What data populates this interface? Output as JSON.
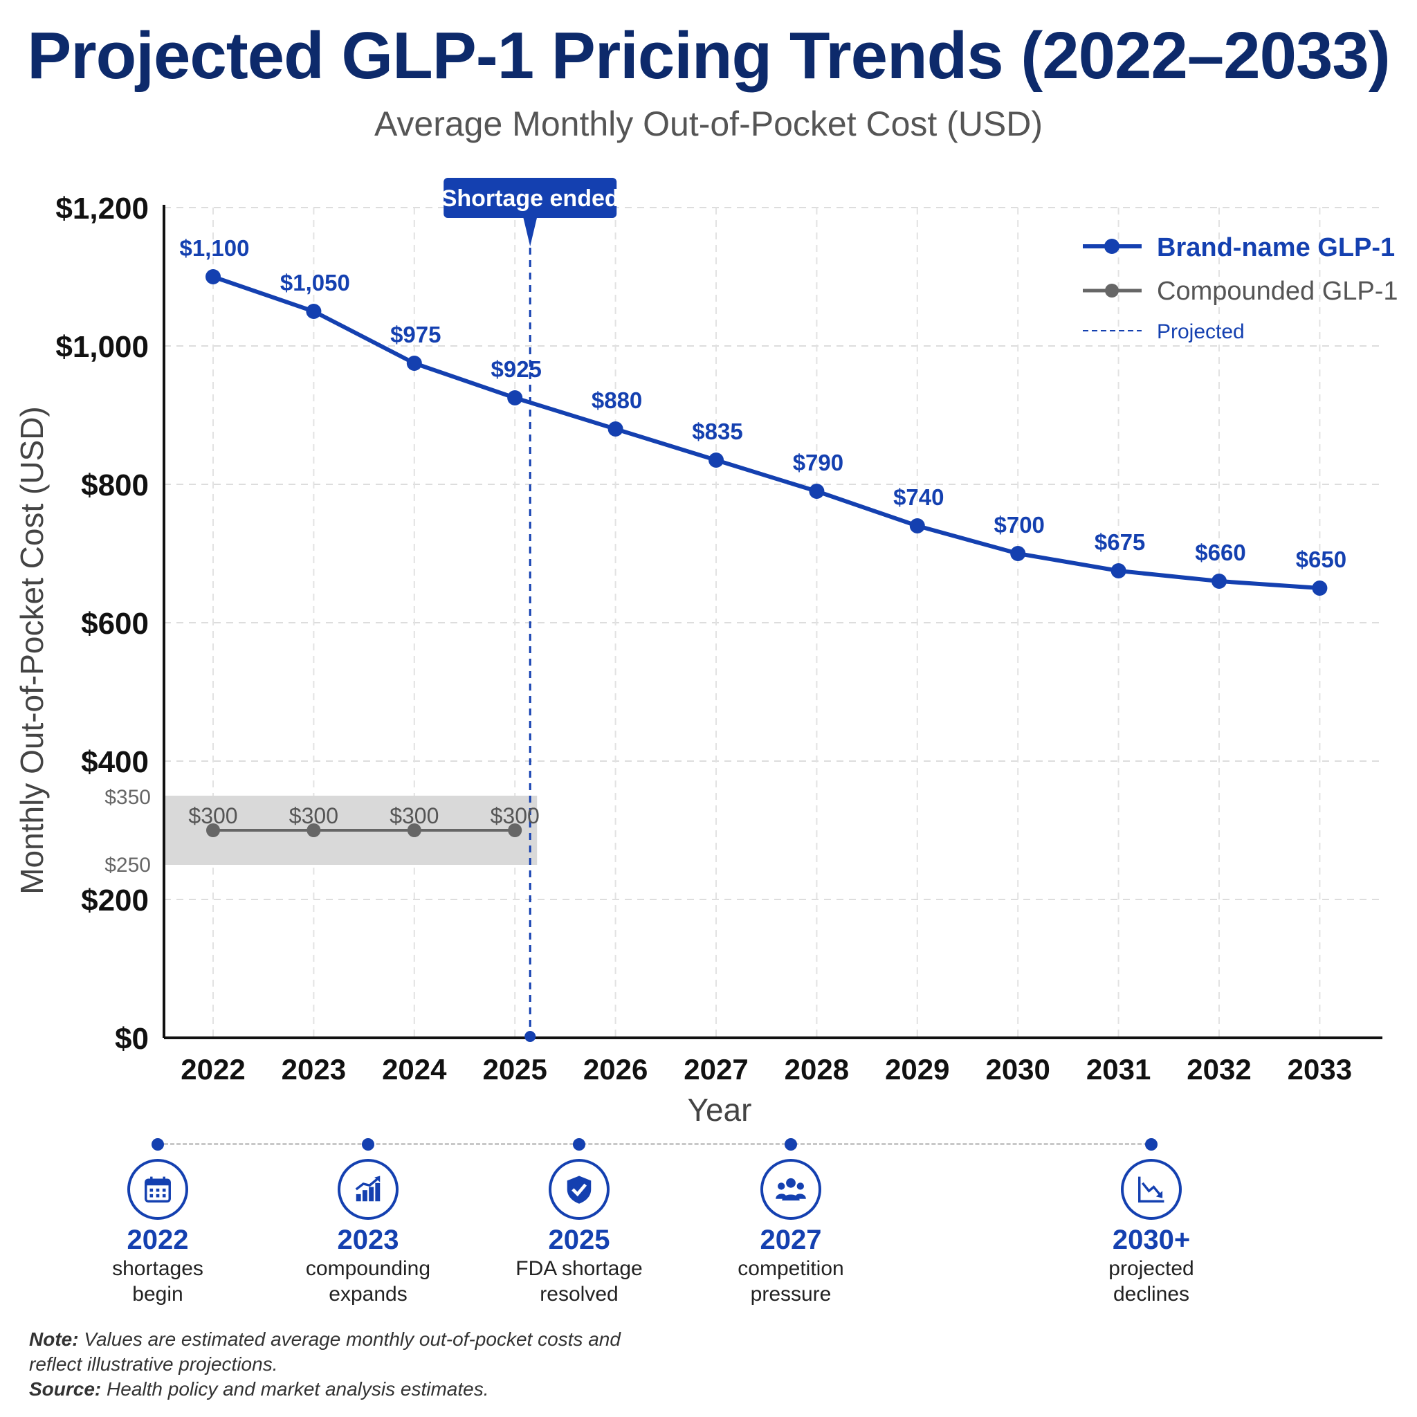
{
  "chart_data": {
    "type": "line",
    "title": "Projected GLP-1 Pricing Trends (2022–2033)",
    "subtitle": "Average Monthly Out-of-Pocket Cost (USD)",
    "xlabel": "Year",
    "ylabel": "Monthly Out-of-Pocket Cost (USD)",
    "categories": [
      "2022",
      "2023",
      "2024",
      "2025",
      "2026",
      "2027",
      "2028",
      "2029",
      "2030",
      "2031",
      "2032",
      "2033"
    ],
    "ylim": [
      0,
      1200
    ],
    "yticks": [
      0,
      200,
      400,
      600,
      800,
      1000,
      1200
    ],
    "ytick_labels": [
      "$0",
      "$200",
      "$400",
      "$600",
      "$800",
      "$1,000",
      "$1,200"
    ],
    "grid": true,
    "legend_position": "top-right",
    "series": [
      {
        "name": "Brand-name GLP-1",
        "color": "#1440b0",
        "values": [
          1100,
          1050,
          975,
          925,
          880,
          835,
          790,
          740,
          700,
          675,
          660,
          650
        ],
        "labels": [
          "$1,100",
          "$1,050",
          "$975",
          "$925",
          "$880",
          "$835",
          "$790",
          "$740",
          "$700",
          "$675",
          "$660",
          "$650"
        ]
      },
      {
        "name": "Compounded GLP-1",
        "color": "#666666",
        "values": [
          300,
          300,
          300,
          300,
          null,
          null,
          null,
          null,
          null,
          null,
          null,
          null
        ],
        "labels": [
          "$300",
          "$300",
          "$300",
          "$300"
        ]
      }
    ],
    "range_band": {
      "low": 250,
      "high": 350,
      "low_label": "$250",
      "high_label": "$350",
      "from": 2022,
      "to": 2025
    },
    "projected_legend_label": "Projected",
    "annotation": {
      "x": 2025,
      "label": "Shortage ended"
    }
  },
  "milestones": [
    {
      "year": "2022",
      "icon": "calendar-icon",
      "line1": "shortages",
      "line2": "begin"
    },
    {
      "year": "2023",
      "icon": "growth-chart-icon",
      "line1": "compounding",
      "line2": "expands"
    },
    {
      "year": "2025",
      "icon": "shield-check-icon",
      "line1": "FDA shortage",
      "line2": "resolved"
    },
    {
      "year": "2027",
      "icon": "people-group-icon",
      "line1": "competition",
      "line2": "pressure"
    },
    {
      "year": "2030+",
      "icon": "decline-chart-icon",
      "line1": "projected",
      "line2": "declines"
    }
  ],
  "note": {
    "note_label": "Note:",
    "note_text": " Values are estimated average monthly out-of-pocket costs and reflect illustrative projections.",
    "source_label": "Source:",
    "source_text": " Health policy and market analysis estimates."
  }
}
